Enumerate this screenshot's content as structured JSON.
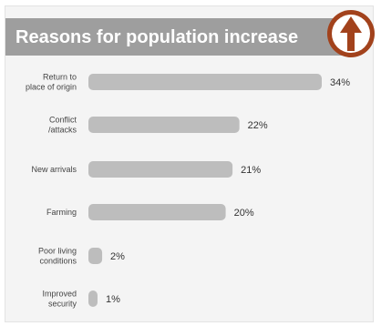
{
  "colors": {
    "header": "#9e9e9e",
    "bar": "#bdbdbd",
    "badge_fill": "#a2421c",
    "badge_ring": "#ffffff"
  },
  "badge_icon": "up-arrow-icon",
  "chart_data": {
    "type": "bar",
    "orientation": "horizontal",
    "title": "Reasons for population increase",
    "categories": [
      [
        "Return to",
        "place of origin"
      ],
      [
        "Conflict",
        "/attacks"
      ],
      [
        "New arrivals"
      ],
      [
        "Farming"
      ],
      [
        "Poor living",
        "conditions"
      ],
      [
        "Improved",
        "security"
      ]
    ],
    "values": [
      34,
      22,
      21,
      20,
      2,
      1
    ],
    "value_labels": [
      "34%",
      "22%",
      "21%",
      "20%",
      "2%",
      "1%"
    ],
    "xlim": [
      0,
      34
    ],
    "grid": false,
    "legend": "none"
  }
}
